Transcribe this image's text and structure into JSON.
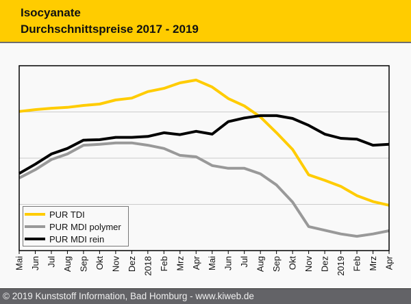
{
  "header": {
    "title_line1": "Isocyanate",
    "title_line2": "Durchschnittspreise 2017 - 2019"
  },
  "footer": {
    "text": "© 2019 Kunststoff Information, Bad Homburg - www.kiweb.de"
  },
  "colors": {
    "header_bg": "#ffcc00",
    "footer_bg": "#636367",
    "tdi": "#ffcc00",
    "mdi_polymer": "#999999",
    "mdi_rein": "#000000",
    "grid": "#cccccc"
  },
  "chart_data": {
    "type": "line",
    "title": "Isocyanate Durchschnittspreise 2017 - 2019",
    "xlabel": "",
    "ylabel": "",
    "y_unit": "relative index (no y-axis labels shown)",
    "ylim": [
      0,
      4
    ],
    "grid": true,
    "y_gridlines": [
      1,
      2,
      3
    ],
    "legend_position": "bottom-left",
    "categories": [
      "Mai",
      "Jun",
      "Jul",
      "Aug",
      "Sep",
      "Okt",
      "Nov",
      "Dez",
      "2018",
      "Feb",
      "Mrz",
      "Apr",
      "Mai",
      "Jun",
      "Jul",
      "Aug",
      "Sep",
      "Okt",
      "Nov",
      "Dez",
      "2019",
      "Feb",
      "Mrz",
      "Apr"
    ],
    "series": [
      {
        "name": "PUR TDI",
        "color": "#ffcc00",
        "values": [
          3.01,
          3.05,
          3.08,
          3.1,
          3.14,
          3.17,
          3.26,
          3.3,
          3.44,
          3.51,
          3.63,
          3.69,
          3.54,
          3.29,
          3.13,
          2.89,
          2.55,
          2.19,
          1.64,
          1.52,
          1.39,
          1.19,
          1.06,
          0.98
        ]
      },
      {
        "name": "PUR MDI polymer",
        "color": "#999999",
        "values": [
          1.57,
          1.75,
          1.97,
          2.09,
          2.28,
          2.3,
          2.33,
          2.33,
          2.28,
          2.21,
          2.06,
          2.03,
          1.84,
          1.78,
          1.78,
          1.66,
          1.42,
          1.05,
          0.52,
          0.44,
          0.36,
          0.31,
          0.36,
          0.43
        ]
      },
      {
        "name": "PUR MDI rein",
        "color": "#000000",
        "values": [
          1.67,
          1.87,
          2.09,
          2.21,
          2.39,
          2.4,
          2.45,
          2.45,
          2.47,
          2.55,
          2.51,
          2.58,
          2.52,
          2.79,
          2.87,
          2.92,
          2.92,
          2.86,
          2.71,
          2.52,
          2.43,
          2.41,
          2.28,
          2.3
        ]
      }
    ]
  }
}
